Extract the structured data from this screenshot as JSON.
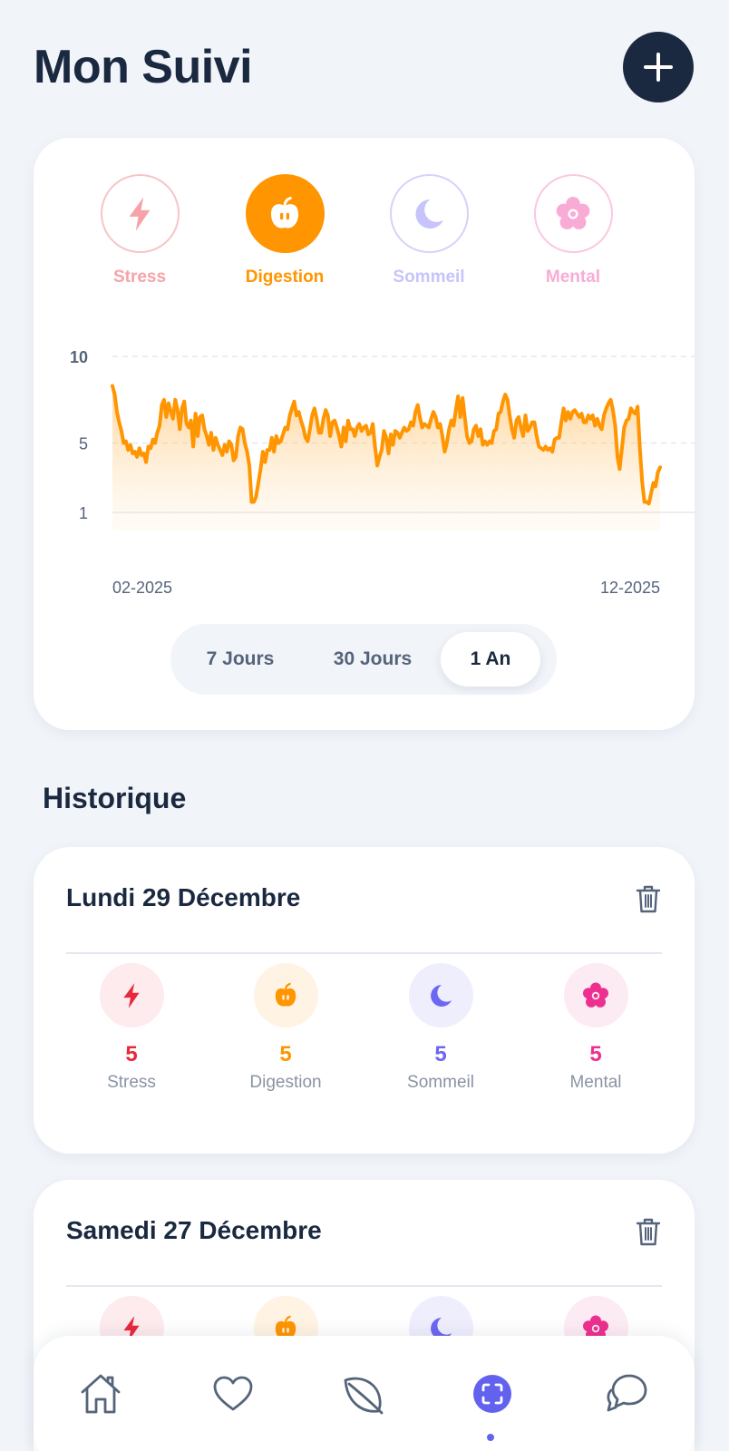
{
  "header": {
    "title": "Mon Suivi"
  },
  "categories": [
    {
      "label": "Stress",
      "icon": "lightning-icon",
      "color": "#f6a3a8",
      "selected": false
    },
    {
      "label": "Digestion",
      "icon": "apple-icon",
      "color": "#ff9500",
      "selected": true
    },
    {
      "label": "Sommeil",
      "icon": "moon-icon",
      "color": "#c6c4fb",
      "selected": false
    },
    {
      "label": "Mental",
      "icon": "flower-icon",
      "color": "#f8acd5",
      "selected": false
    }
  ],
  "chart_data": {
    "type": "area",
    "series": [
      {
        "values": [
          8.3,
          7.8,
          6.8,
          6.2,
          5.7,
          5.0,
          5.1,
          4.6,
          4.9,
          4.4,
          4.5,
          4.2,
          4.7,
          4.3,
          4.4,
          3.9,
          4.8,
          4.7,
          5.2,
          5.0,
          5.6,
          6.0,
          7.2,
          7.5,
          6.5,
          7.3,
          6.8,
          6.4,
          7.5,
          6.9,
          5.8,
          7.0,
          7.4,
          6.1,
          5.9,
          6.3,
          4.8,
          6.7,
          5.4,
          6.5,
          6.6,
          5.8,
          5.4,
          4.9,
          5.6,
          4.6,
          5.3,
          4.9,
          4.6,
          4.3,
          4.9,
          4.5,
          5.1,
          4.9,
          4.0,
          4.2,
          5.4,
          5.9,
          5.8,
          5.0,
          4.5,
          3.7,
          1.6,
          1.6,
          1.9,
          2.7,
          3.5,
          4.5,
          3.9,
          4.6,
          4.6,
          5.3,
          4.5,
          5.4,
          5.0,
          5.1,
          5.5,
          5.9,
          5.8,
          6.6,
          7.0,
          7.4,
          6.6,
          6.8,
          6.3,
          5.9,
          5.3,
          5.1,
          5.8,
          6.6,
          7.0,
          6.4,
          5.6,
          5.6,
          6.4,
          6.9,
          6.6,
          5.4,
          6.2,
          6.3,
          5.9,
          5.4,
          4.8,
          5.9,
          5.1,
          6.3,
          5.8,
          5.8,
          5.4,
          5.9,
          6.1,
          5.7,
          5.9,
          6.0,
          5.5,
          5.6,
          6.1,
          4.8,
          3.7,
          4.2,
          4.6,
          5.7,
          5.3,
          4.4,
          5.5,
          4.9,
          5.7,
          5.6,
          5.3,
          5.6,
          5.9,
          5.7,
          5.8,
          6.2,
          6.0,
          6.8,
          7.2,
          6.5,
          5.9,
          6.1,
          6.0,
          5.9,
          6.4,
          6.8,
          6.5,
          5.9,
          6.1,
          5.4,
          4.5,
          5.0,
          5.8,
          6.3,
          6.0,
          6.9,
          7.7,
          6.5,
          7.6,
          6.5,
          5.4,
          5.0,
          5.1,
          5.8,
          6.0,
          5.4,
          5.8,
          4.9,
          5.1,
          4.9,
          5.1,
          5.0,
          5.7,
          5.8,
          6.7,
          6.8,
          7.4,
          7.8,
          7.5,
          6.6,
          5.8,
          5.3,
          6.3,
          6.5,
          5.9,
          5.4,
          6.6,
          5.7,
          5.9,
          6.2,
          6.2,
          5.4,
          4.8,
          4.7,
          4.6,
          4.8,
          4.6,
          4.7,
          4.5,
          5.2,
          5.3,
          5.3,
          6.2,
          7.0,
          6.3,
          6.8,
          6.4,
          6.8,
          6.9,
          6.7,
          6.5,
          6.7,
          6.2,
          6.2,
          6.6,
          6.4,
          6.6,
          6.0,
          6.4,
          6.0,
          5.8,
          6.6,
          7.0,
          7.3,
          7.5,
          6.9,
          6.0,
          4.2,
          3.5,
          4.7,
          5.9,
          6.3,
          6.4,
          7.0,
          6.8,
          6.7,
          7.1,
          4.7,
          2.8,
          1.6,
          1.6,
          1.5,
          2.1,
          2.7,
          2.5,
          3.3,
          3.6
        ]
      }
    ],
    "x_tick_labels": [
      "02-2025",
      "12-2025"
    ],
    "y_ticks": [
      1,
      5,
      10
    ],
    "ylim": [
      0,
      10.5
    ],
    "line_color": "#ff9500",
    "grid": "dashed horizontal"
  },
  "range_selector": {
    "options": [
      "7 Jours",
      "30 Jours",
      "1 An"
    ],
    "active_index": 2
  },
  "history": {
    "title": "Historique",
    "entries": [
      {
        "date": "Lundi 29 Décembre",
        "metrics": [
          {
            "value": "5",
            "label": "Stress",
            "icon": "lightning-icon",
            "color": "#e8293c",
            "bg": "#fdebed"
          },
          {
            "value": "5",
            "label": "Digestion",
            "icon": "apple-icon",
            "color": "#ff9500",
            "bg": "#fff3e3"
          },
          {
            "value": "5",
            "label": "Sommeil",
            "icon": "moon-icon",
            "color": "#6c67f2",
            "bg": "#efeefd"
          },
          {
            "value": "5",
            "label": "Mental",
            "icon": "flower-icon",
            "color": "#ed2f8e",
            "bg": "#fdebf4"
          }
        ]
      },
      {
        "date": "Samedi 27 Décembre",
        "metrics": [
          {
            "icon": "lightning-icon",
            "color": "#e8293c",
            "bg": "#fdebed"
          },
          {
            "icon": "apple-icon",
            "color": "#ff9500",
            "bg": "#fff3e3"
          },
          {
            "icon": "moon-icon",
            "color": "#6c67f2",
            "bg": "#efeefd"
          },
          {
            "icon": "flower-icon",
            "color": "#ed2f8e",
            "bg": "#fdebf4"
          }
        ]
      }
    ]
  },
  "nav": {
    "items": [
      {
        "icon": "home-icon"
      },
      {
        "icon": "heart-icon"
      },
      {
        "icon": "leaf-icon"
      },
      {
        "icon": "scan-icon",
        "active": true
      },
      {
        "icon": "chat-icon"
      }
    ],
    "active_color": "#6262ee",
    "inactive_color": "#55647a"
  }
}
